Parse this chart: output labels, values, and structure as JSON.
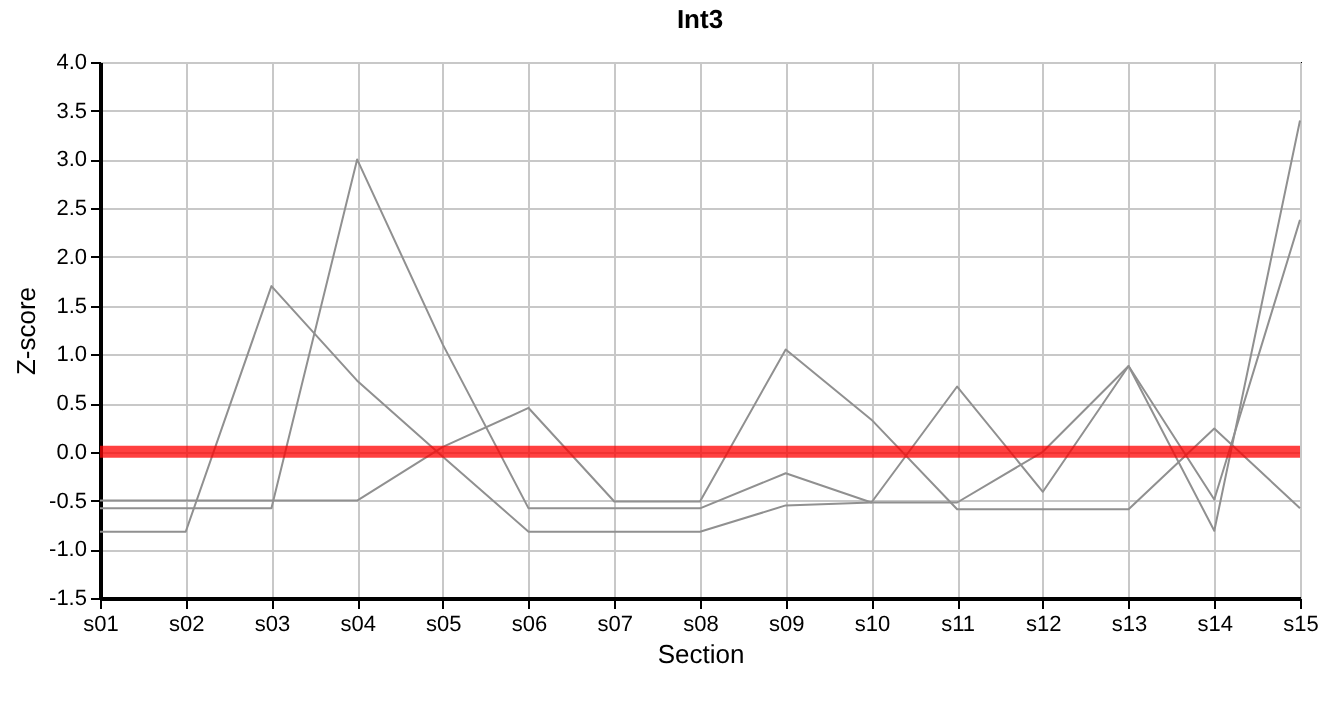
{
  "chart_data": {
    "type": "line",
    "title": "Int3",
    "xlabel": "Section",
    "ylabel": "Z-score",
    "categories": [
      "s01",
      "s02",
      "s03",
      "s04",
      "s05",
      "s06",
      "s07",
      "s08",
      "s09",
      "s10",
      "s11",
      "s12",
      "s13",
      "s14",
      "s15"
    ],
    "series": [
      {
        "color": "#909090",
        "values": [
          -0.82,
          -0.82,
          1.7,
          0.73,
          -0.05,
          -0.82,
          -0.82,
          -0.82,
          -0.55,
          -0.52,
          -0.52,
          0.0,
          0.88,
          -0.49,
          2.38
        ]
      },
      {
        "color": "#909090",
        "values": [
          -0.58,
          -0.58,
          -0.58,
          3.0,
          1.1,
          -0.58,
          -0.58,
          -0.58,
          -0.22,
          -0.52,
          0.67,
          -0.41,
          0.88,
          -0.81,
          3.4
        ]
      },
      {
        "color": "#909090",
        "values": [
          -0.5,
          -0.5,
          -0.5,
          -0.5,
          0.05,
          0.45,
          -0.51,
          -0.51,
          1.05,
          0.33,
          -0.59,
          -0.59,
          -0.59,
          0.24,
          -0.58
        ]
      }
    ],
    "ylim": [
      -1.5,
      4.0
    ],
    "yticks": [
      {
        "value": -1.5,
        "label": "-1.5"
      },
      {
        "value": -1,
        "label": "-1.0"
      },
      {
        "value": -0.5,
        "label": "-0.5"
      },
      {
        "value": 0,
        "label": "0.0"
      },
      {
        "value": 0.5,
        "label": "0.5"
      },
      {
        "value": 1,
        "label": "1.0"
      },
      {
        "value": 1.5,
        "label": "1.5"
      },
      {
        "value": 2,
        "label": "2.0"
      },
      {
        "value": 2.5,
        "label": "2.5"
      },
      {
        "value": 3,
        "label": "3.0"
      },
      {
        "value": 3.5,
        "label": "3.5"
      },
      {
        "value": 4,
        "label": "4.0"
      }
    ],
    "ref_lines": [
      {
        "axis": "y",
        "value": 0,
        "color": "#ff0000"
      }
    ],
    "grid": true
  }
}
